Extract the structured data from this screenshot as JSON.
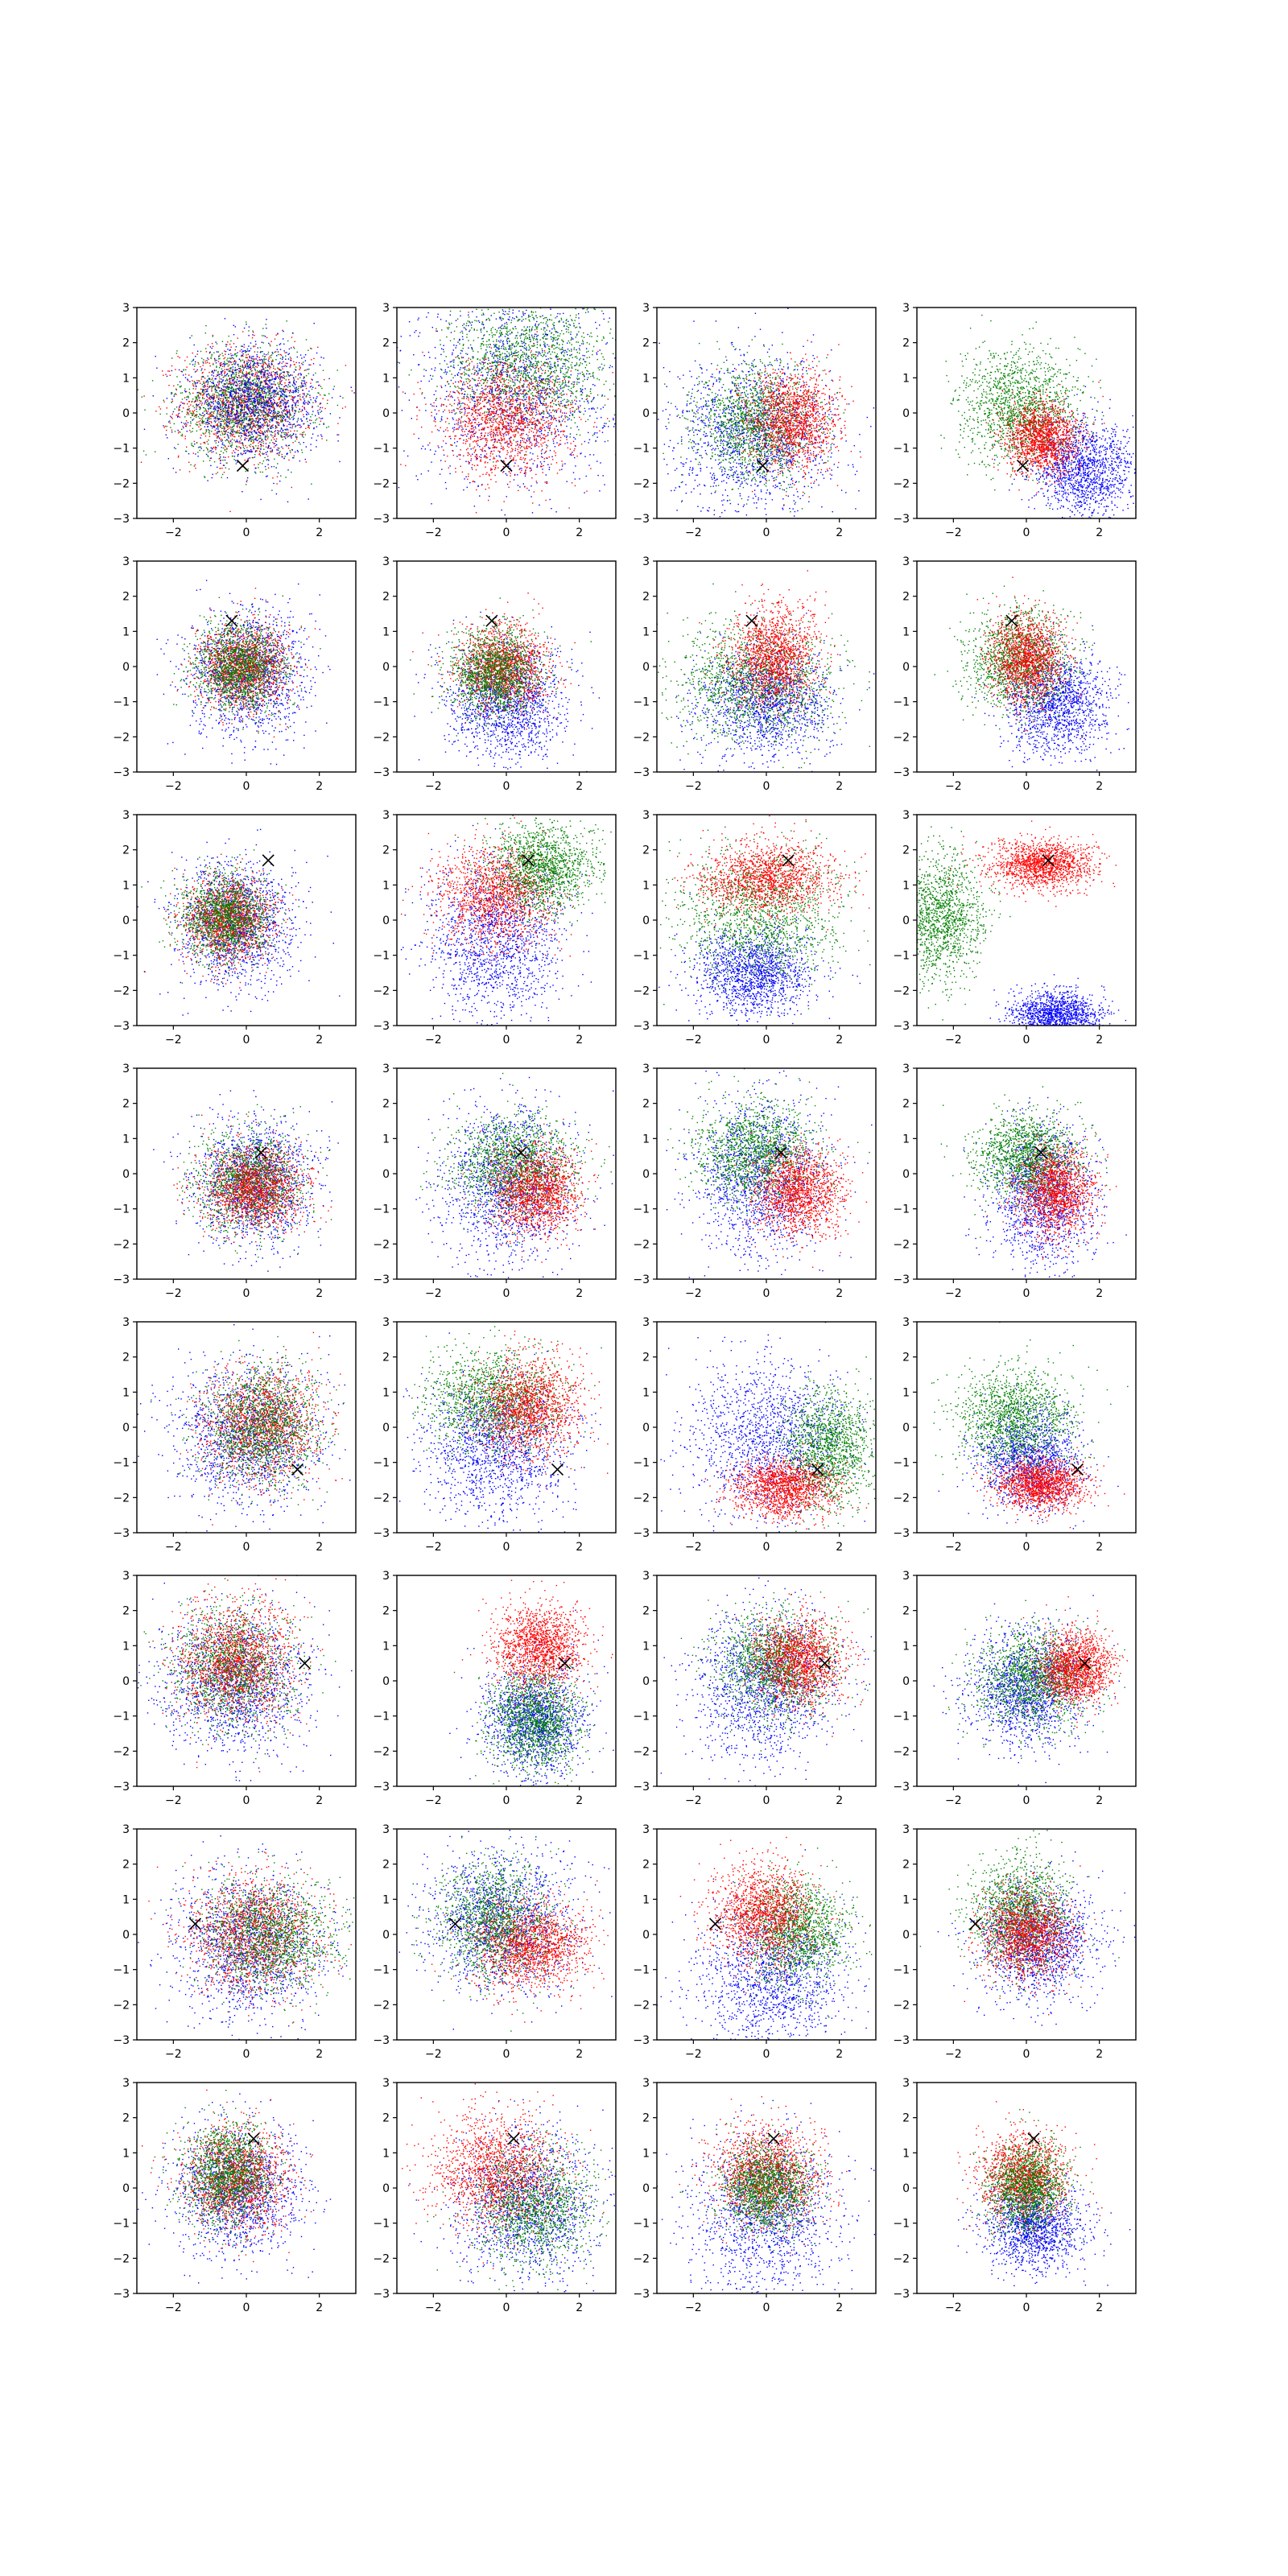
{
  "chart_data": {
    "type": "scatter",
    "layout": "8x4 grid of scatter panels",
    "xlim": [
      -3,
      3
    ],
    "ylim": [
      -3,
      3
    ],
    "xticks": [
      -2,
      0,
      2
    ],
    "yticks": [
      -3,
      -2,
      -1,
      0,
      1,
      2,
      3
    ],
    "grid": false,
    "legend": "none",
    "colors": {
      "red": "#ff0000",
      "green": "#008000",
      "blue": "#0000ff",
      "marker": "#000000"
    },
    "panels": [
      {
        "row": 0,
        "col": 0,
        "marker": [
          -0.1,
          -1.5
        ],
        "clusters": [
          {
            "color": "red",
            "cx": 0.0,
            "cy": 0.3,
            "sx": 0.9,
            "sy": 0.8
          },
          {
            "color": "green",
            "cx": -0.1,
            "cy": 0.3,
            "sx": 0.9,
            "sy": 0.8
          },
          {
            "color": "blue",
            "cx": 0.2,
            "cy": 0.3,
            "sx": 0.9,
            "sy": 0.8
          }
        ]
      },
      {
        "row": 0,
        "col": 1,
        "marker": [
          0.0,
          -1.5
        ],
        "clusters": [
          {
            "color": "blue",
            "cx": 0.2,
            "cy": 0.7,
            "sx": 1.3,
            "sy": 1.4
          },
          {
            "color": "green",
            "cx": 0.6,
            "cy": 1.4,
            "sx": 1.1,
            "sy": 0.9
          },
          {
            "color": "red",
            "cx": 0.0,
            "cy": -0.2,
            "sx": 0.9,
            "sy": 0.8
          }
        ]
      },
      {
        "row": 0,
        "col": 2,
        "marker": [
          -0.1,
          -1.5
        ],
        "clusters": [
          {
            "color": "blue",
            "cx": -0.3,
            "cy": -0.6,
            "sx": 1.1,
            "sy": 1.1
          },
          {
            "color": "green",
            "cx": -0.3,
            "cy": -0.3,
            "sx": 0.8,
            "sy": 0.8
          },
          {
            "color": "red",
            "cx": 0.7,
            "cy": -0.2,
            "sx": 0.6,
            "sy": 0.7
          }
        ]
      },
      {
        "row": 0,
        "col": 3,
        "marker": [
          -0.1,
          -1.5
        ],
        "clusters": [
          {
            "color": "blue",
            "cx": 1.6,
            "cy": -1.6,
            "sx": 0.7,
            "sy": 0.7
          },
          {
            "color": "green",
            "cx": -0.2,
            "cy": 0.2,
            "sx": 0.8,
            "sy": 0.8
          },
          {
            "color": "red",
            "cx": 0.4,
            "cy": -0.7,
            "sx": 0.5,
            "sy": 0.5
          }
        ]
      },
      {
        "row": 1,
        "col": 0,
        "marker": [
          -0.4,
          1.3
        ],
        "clusters": [
          {
            "color": "blue",
            "cx": 0.0,
            "cy": -0.2,
            "sx": 0.8,
            "sy": 0.9
          },
          {
            "color": "red",
            "cx": -0.1,
            "cy": 0.0,
            "sx": 0.6,
            "sy": 0.6
          },
          {
            "color": "green",
            "cx": -0.2,
            "cy": 0.0,
            "sx": 0.6,
            "sy": 0.6
          }
        ]
      },
      {
        "row": 1,
        "col": 1,
        "marker": [
          -0.4,
          1.3
        ],
        "clusters": [
          {
            "color": "blue",
            "cx": 0.0,
            "cy": -1.0,
            "sx": 0.8,
            "sy": 0.8
          },
          {
            "color": "red",
            "cx": -0.1,
            "cy": 0.0,
            "sx": 0.6,
            "sy": 0.6
          },
          {
            "color": "green",
            "cx": -0.3,
            "cy": -0.2,
            "sx": 0.6,
            "sy": 0.6
          }
        ]
      },
      {
        "row": 1,
        "col": 2,
        "marker": [
          -0.4,
          1.3
        ],
        "clusters": [
          {
            "color": "blue",
            "cx": 0.0,
            "cy": -1.0,
            "sx": 0.9,
            "sy": 0.8
          },
          {
            "color": "green",
            "cx": -0.3,
            "cy": -0.4,
            "sx": 1.1,
            "sy": 0.8
          },
          {
            "color": "red",
            "cx": 0.2,
            "cy": 0.3,
            "sx": 0.6,
            "sy": 0.7
          }
        ]
      },
      {
        "row": 1,
        "col": 3,
        "marker": [
          -0.4,
          1.3
        ],
        "clusters": [
          {
            "color": "blue",
            "cx": 0.8,
            "cy": -1.0,
            "sx": 0.7,
            "sy": 0.7
          },
          {
            "color": "green",
            "cx": -0.2,
            "cy": 0.2,
            "sx": 0.7,
            "sy": 0.7
          },
          {
            "color": "red",
            "cx": 0.0,
            "cy": 0.2,
            "sx": 0.5,
            "sy": 0.6
          }
        ]
      },
      {
        "row": 2,
        "col": 0,
        "marker": [
          0.6,
          1.7
        ],
        "clusters": [
          {
            "color": "blue",
            "cx": -0.3,
            "cy": -0.1,
            "sx": 0.8,
            "sy": 0.9
          },
          {
            "color": "red",
            "cx": -0.5,
            "cy": 0.0,
            "sx": 0.6,
            "sy": 0.6
          },
          {
            "color": "green",
            "cx": -0.6,
            "cy": 0.1,
            "sx": 0.6,
            "sy": 0.6
          }
        ]
      },
      {
        "row": 2,
        "col": 1,
        "marker": [
          0.6,
          1.7
        ],
        "clusters": [
          {
            "color": "blue",
            "cx": -0.3,
            "cy": -0.6,
            "sx": 0.9,
            "sy": 1.1
          },
          {
            "color": "red",
            "cx": -0.3,
            "cy": 0.7,
            "sx": 0.8,
            "sy": 0.7
          },
          {
            "color": "green",
            "cx": 1.0,
            "cy": 1.5,
            "sx": 0.7,
            "sy": 0.6
          }
        ]
      },
      {
        "row": 2,
        "col": 2,
        "marker": [
          0.6,
          1.7
        ],
        "clusters": [
          {
            "color": "blue",
            "cx": -0.4,
            "cy": -1.5,
            "sx": 0.8,
            "sy": 0.6
          },
          {
            "color": "green",
            "cx": -0.2,
            "cy": 0.1,
            "sx": 1.1,
            "sy": 0.9
          },
          {
            "color": "red",
            "cx": 0.0,
            "cy": 1.2,
            "sx": 0.9,
            "sy": 0.5
          }
        ]
      },
      {
        "row": 2,
        "col": 3,
        "marker": [
          0.6,
          1.7
        ],
        "clusters": [
          {
            "color": "blue",
            "cx": 0.8,
            "cy": -2.7,
            "sx": 0.6,
            "sy": 0.35
          },
          {
            "color": "green",
            "cx": -2.4,
            "cy": 0.1,
            "sx": 0.6,
            "sy": 0.9
          },
          {
            "color": "red",
            "cx": 0.4,
            "cy": 1.6,
            "sx": 0.7,
            "sy": 0.35
          }
        ]
      },
      {
        "row": 3,
        "col": 0,
        "marker": [
          0.4,
          0.6
        ],
        "clusters": [
          {
            "color": "blue",
            "cx": 0.2,
            "cy": -0.2,
            "sx": 0.8,
            "sy": 0.9
          },
          {
            "color": "green",
            "cx": 0.1,
            "cy": -0.2,
            "sx": 0.7,
            "sy": 0.7
          },
          {
            "color": "red",
            "cx": 0.2,
            "cy": -0.4,
            "sx": 0.7,
            "sy": 0.6
          }
        ]
      },
      {
        "row": 3,
        "col": 1,
        "marker": [
          0.4,
          0.6
        ],
        "clusters": [
          {
            "color": "blue",
            "cx": 0.0,
            "cy": -0.3,
            "sx": 0.9,
            "sy": 1.1
          },
          {
            "color": "green",
            "cx": 0.2,
            "cy": 0.3,
            "sx": 0.8,
            "sy": 0.7
          },
          {
            "color": "red",
            "cx": 0.8,
            "cy": -0.5,
            "sx": 0.6,
            "sy": 0.6
          }
        ]
      },
      {
        "row": 3,
        "col": 2,
        "marker": [
          0.4,
          0.6
        ],
        "clusters": [
          {
            "color": "blue",
            "cx": -0.2,
            "cy": -0.1,
            "sx": 0.9,
            "sy": 1.1
          },
          {
            "color": "green",
            "cx": -0.3,
            "cy": 0.6,
            "sx": 0.8,
            "sy": 0.7
          },
          {
            "color": "red",
            "cx": 0.9,
            "cy": -0.5,
            "sx": 0.6,
            "sy": 0.6
          }
        ]
      },
      {
        "row": 3,
        "col": 3,
        "marker": [
          0.4,
          0.6
        ],
        "clusters": [
          {
            "color": "blue",
            "cx": 0.4,
            "cy": -0.6,
            "sx": 0.7,
            "sy": 1.0
          },
          {
            "color": "green",
            "cx": 0.0,
            "cy": 0.5,
            "sx": 0.7,
            "sy": 0.6
          },
          {
            "color": "red",
            "cx": 0.8,
            "cy": -0.5,
            "sx": 0.5,
            "sy": 0.6
          }
        ]
      },
      {
        "row": 4,
        "col": 0,
        "marker": [
          1.4,
          -1.2
        ],
        "clusters": [
          {
            "color": "blue",
            "cx": 0.0,
            "cy": -0.2,
            "sx": 1.0,
            "sy": 1.0
          },
          {
            "color": "red",
            "cx": 0.4,
            "cy": 0.1,
            "sx": 0.8,
            "sy": 0.8
          },
          {
            "color": "green",
            "cx": 0.4,
            "cy": 0.1,
            "sx": 0.8,
            "sy": 0.8
          }
        ]
      },
      {
        "row": 4,
        "col": 1,
        "marker": [
          1.4,
          -1.2
        ],
        "clusters": [
          {
            "color": "blue",
            "cx": -0.3,
            "cy": -0.6,
            "sx": 1.0,
            "sy": 1.0
          },
          {
            "color": "green",
            "cx": -0.4,
            "cy": 0.8,
            "sx": 0.9,
            "sy": 0.7
          },
          {
            "color": "red",
            "cx": 0.6,
            "cy": 0.6,
            "sx": 0.7,
            "sy": 0.7
          }
        ]
      },
      {
        "row": 4,
        "col": 2,
        "marker": [
          1.4,
          -1.2
        ],
        "clusters": [
          {
            "color": "blue",
            "cx": 0.0,
            "cy": -0.3,
            "sx": 1.1,
            "sy": 1.1
          },
          {
            "color": "green",
            "cx": 1.7,
            "cy": -0.6,
            "sx": 0.6,
            "sy": 0.8
          },
          {
            "color": "red",
            "cx": 0.5,
            "cy": -1.7,
            "sx": 0.7,
            "sy": 0.4
          }
        ]
      },
      {
        "row": 4,
        "col": 3,
        "marker": [
          1.4,
          -1.2
        ],
        "clusters": [
          {
            "color": "blue",
            "cx": 0.1,
            "cy": -0.9,
            "sx": 0.7,
            "sy": 0.7
          },
          {
            "color": "green",
            "cx": -0.3,
            "cy": 0.3,
            "sx": 0.8,
            "sy": 0.7
          },
          {
            "color": "red",
            "cx": 0.4,
            "cy": -1.6,
            "sx": 0.6,
            "sy": 0.35
          }
        ]
      },
      {
        "row": 5,
        "col": 0,
        "marker": [
          1.6,
          0.5
        ],
        "clusters": [
          {
            "color": "blue",
            "cx": -0.3,
            "cy": 0.0,
            "sx": 1.0,
            "sy": 1.0
          },
          {
            "color": "green",
            "cx": -0.4,
            "cy": 0.4,
            "sx": 0.8,
            "sy": 0.8
          },
          {
            "color": "red",
            "cx": -0.3,
            "cy": 0.6,
            "sx": 0.8,
            "sy": 0.8
          }
        ]
      },
      {
        "row": 5,
        "col": 1,
        "marker": [
          1.6,
          0.5
        ],
        "clusters": [
          {
            "color": "blue",
            "cx": 0.8,
            "cy": -1.1,
            "sx": 0.7,
            "sy": 0.8
          },
          {
            "color": "green",
            "cx": 0.8,
            "cy": -1.1,
            "sx": 0.6,
            "sy": 0.7
          },
          {
            "color": "red",
            "cx": 0.9,
            "cy": 1.0,
            "sx": 0.6,
            "sy": 0.6
          }
        ]
      },
      {
        "row": 5,
        "col": 2,
        "marker": [
          1.6,
          0.5
        ],
        "clusters": [
          {
            "color": "blue",
            "cx": -0.1,
            "cy": -0.1,
            "sx": 1.0,
            "sy": 1.1
          },
          {
            "color": "green",
            "cx": 0.2,
            "cy": 0.5,
            "sx": 0.8,
            "sy": 0.7
          },
          {
            "color": "red",
            "cx": 0.9,
            "cy": 0.6,
            "sx": 0.6,
            "sy": 0.6
          }
        ]
      },
      {
        "row": 5,
        "col": 3,
        "marker": [
          1.6,
          0.5
        ],
        "clusters": [
          {
            "color": "blue",
            "cx": 0.0,
            "cy": -0.2,
            "sx": 0.8,
            "sy": 0.8
          },
          {
            "color": "green",
            "cx": 0.2,
            "cy": 0.1,
            "sx": 0.8,
            "sy": 0.7
          },
          {
            "color": "red",
            "cx": 1.3,
            "cy": 0.4,
            "sx": 0.5,
            "sy": 0.5
          }
        ]
      },
      {
        "row": 6,
        "col": 0,
        "marker": [
          -1.4,
          0.3
        ],
        "clusters": [
          {
            "color": "blue",
            "cx": 0.1,
            "cy": -0.3,
            "sx": 1.0,
            "sy": 1.0
          },
          {
            "color": "red",
            "cx": 0.2,
            "cy": 0.0,
            "sx": 0.9,
            "sy": 0.8
          },
          {
            "color": "green",
            "cx": 0.6,
            "cy": 0.0,
            "sx": 0.9,
            "sy": 0.8
          }
        ]
      },
      {
        "row": 6,
        "col": 1,
        "marker": [
          -1.4,
          0.3
        ],
        "clusters": [
          {
            "color": "blue",
            "cx": -0.2,
            "cy": 0.4,
            "sx": 1.0,
            "sy": 1.0
          },
          {
            "color": "green",
            "cx": -0.3,
            "cy": 0.4,
            "sx": 0.8,
            "sy": 0.8
          },
          {
            "color": "red",
            "cx": 0.7,
            "cy": -0.3,
            "sx": 0.8,
            "sy": 0.6
          }
        ]
      },
      {
        "row": 6,
        "col": 2,
        "marker": [
          -1.4,
          0.3
        ],
        "clusters": [
          {
            "color": "blue",
            "cx": 0.2,
            "cy": -1.2,
            "sx": 1.0,
            "sy": 1.0
          },
          {
            "color": "green",
            "cx": 0.8,
            "cy": 0.1,
            "sx": 0.7,
            "sy": 0.7
          },
          {
            "color": "red",
            "cx": -0.1,
            "cy": 0.6,
            "sx": 0.7,
            "sy": 0.7
          }
        ]
      },
      {
        "row": 6,
        "col": 3,
        "marker": [
          -1.4,
          0.3
        ],
        "clusters": [
          {
            "color": "blue",
            "cx": 0.3,
            "cy": -0.2,
            "sx": 0.8,
            "sy": 0.8
          },
          {
            "color": "green",
            "cx": -0.2,
            "cy": 0.6,
            "sx": 0.7,
            "sy": 0.8
          },
          {
            "color": "red",
            "cx": 0.0,
            "cy": 0.0,
            "sx": 0.6,
            "sy": 0.6
          }
        ]
      },
      {
        "row": 7,
        "col": 0,
        "marker": [
          0.2,
          1.4
        ],
        "clusters": [
          {
            "color": "blue",
            "cx": -0.2,
            "cy": -0.1,
            "sx": 0.9,
            "sy": 0.9
          },
          {
            "color": "red",
            "cx": -0.3,
            "cy": 0.3,
            "sx": 0.7,
            "sy": 0.7
          },
          {
            "color": "green",
            "cx": -0.5,
            "cy": 0.4,
            "sx": 0.6,
            "sy": 0.7
          }
        ]
      },
      {
        "row": 7,
        "col": 1,
        "marker": [
          0.2,
          1.4
        ],
        "clusters": [
          {
            "color": "blue",
            "cx": 0.5,
            "cy": -0.5,
            "sx": 1.0,
            "sy": 1.0
          },
          {
            "color": "green",
            "cx": 0.7,
            "cy": -0.5,
            "sx": 0.8,
            "sy": 0.8
          },
          {
            "color": "red",
            "cx": -0.3,
            "cy": 0.5,
            "sx": 0.9,
            "sy": 0.8
          }
        ]
      },
      {
        "row": 7,
        "col": 2,
        "marker": [
          0.2,
          1.4
        ],
        "clusters": [
          {
            "color": "blue",
            "cx": 0.0,
            "cy": -0.8,
            "sx": 1.0,
            "sy": 1.1
          },
          {
            "color": "red",
            "cx": 0.0,
            "cy": 0.4,
            "sx": 0.7,
            "sy": 0.7
          },
          {
            "color": "green",
            "cx": 0.0,
            "cy": 0.0,
            "sx": 0.6,
            "sy": 0.6
          }
        ]
      },
      {
        "row": 7,
        "col": 3,
        "marker": [
          0.2,
          1.4
        ],
        "clusters": [
          {
            "color": "blue",
            "cx": 0.2,
            "cy": -1.1,
            "sx": 0.7,
            "sy": 0.6
          },
          {
            "color": "red",
            "cx": -0.1,
            "cy": 0.3,
            "sx": 0.6,
            "sy": 0.6
          },
          {
            "color": "green",
            "cx": 0.0,
            "cy": 0.0,
            "sx": 0.5,
            "sy": 0.6
          }
        ]
      }
    ]
  }
}
